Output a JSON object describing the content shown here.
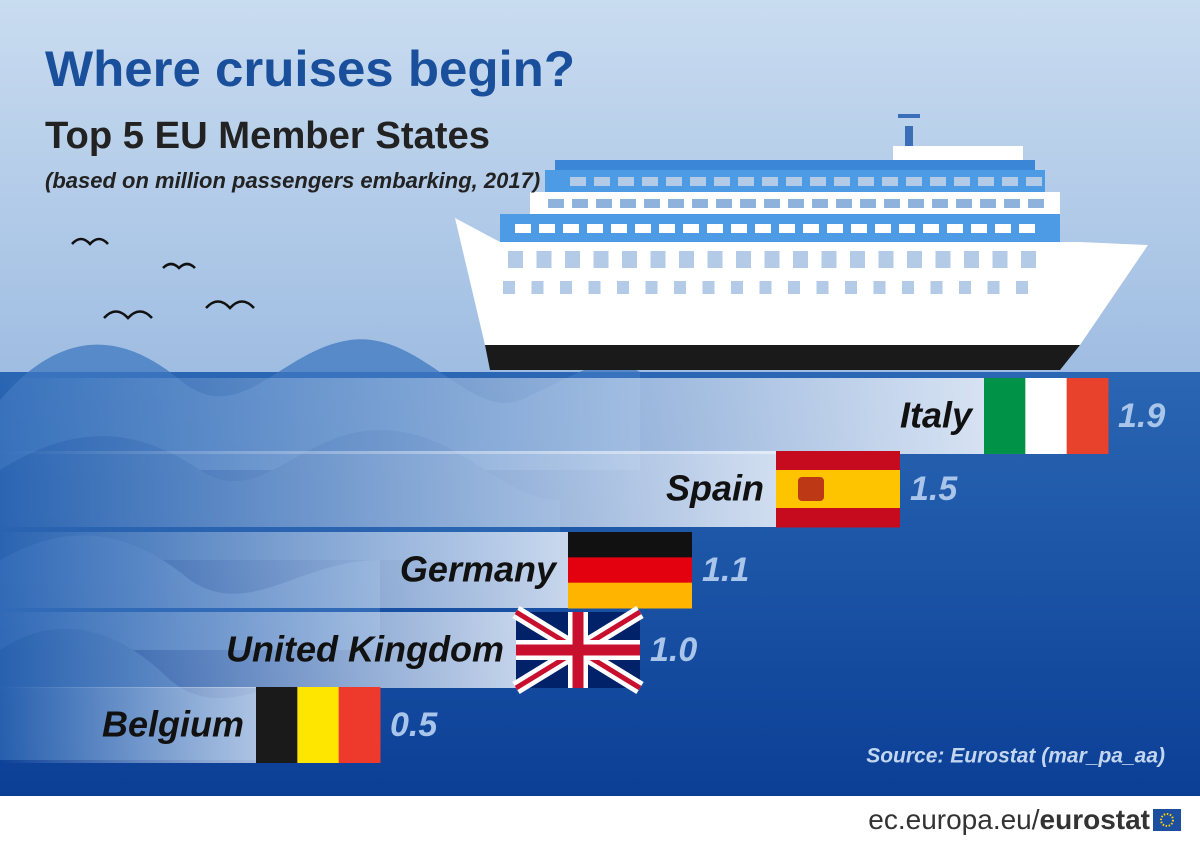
{
  "chart_data": {
    "type": "bar",
    "orientation": "horizontal",
    "title": "Where cruises begin?",
    "subtitle": "Top 5 EU Member States",
    "note": "(based on million passengers embarking, 2017)",
    "categories": [
      "Italy",
      "Spain",
      "Germany",
      "United Kingdom",
      "Belgium"
    ],
    "values": [
      1.9,
      1.5,
      1.1,
      1.0,
      0.5
    ],
    "value_labels": [
      "1.9",
      "1.5",
      "1.1",
      "1.0",
      "0.5"
    ],
    "source": "Source: Eurostat (mar_pa_aa)"
  },
  "footer": {
    "domain": "ec.europa.eu/",
    "brand": "eurostat"
  }
}
